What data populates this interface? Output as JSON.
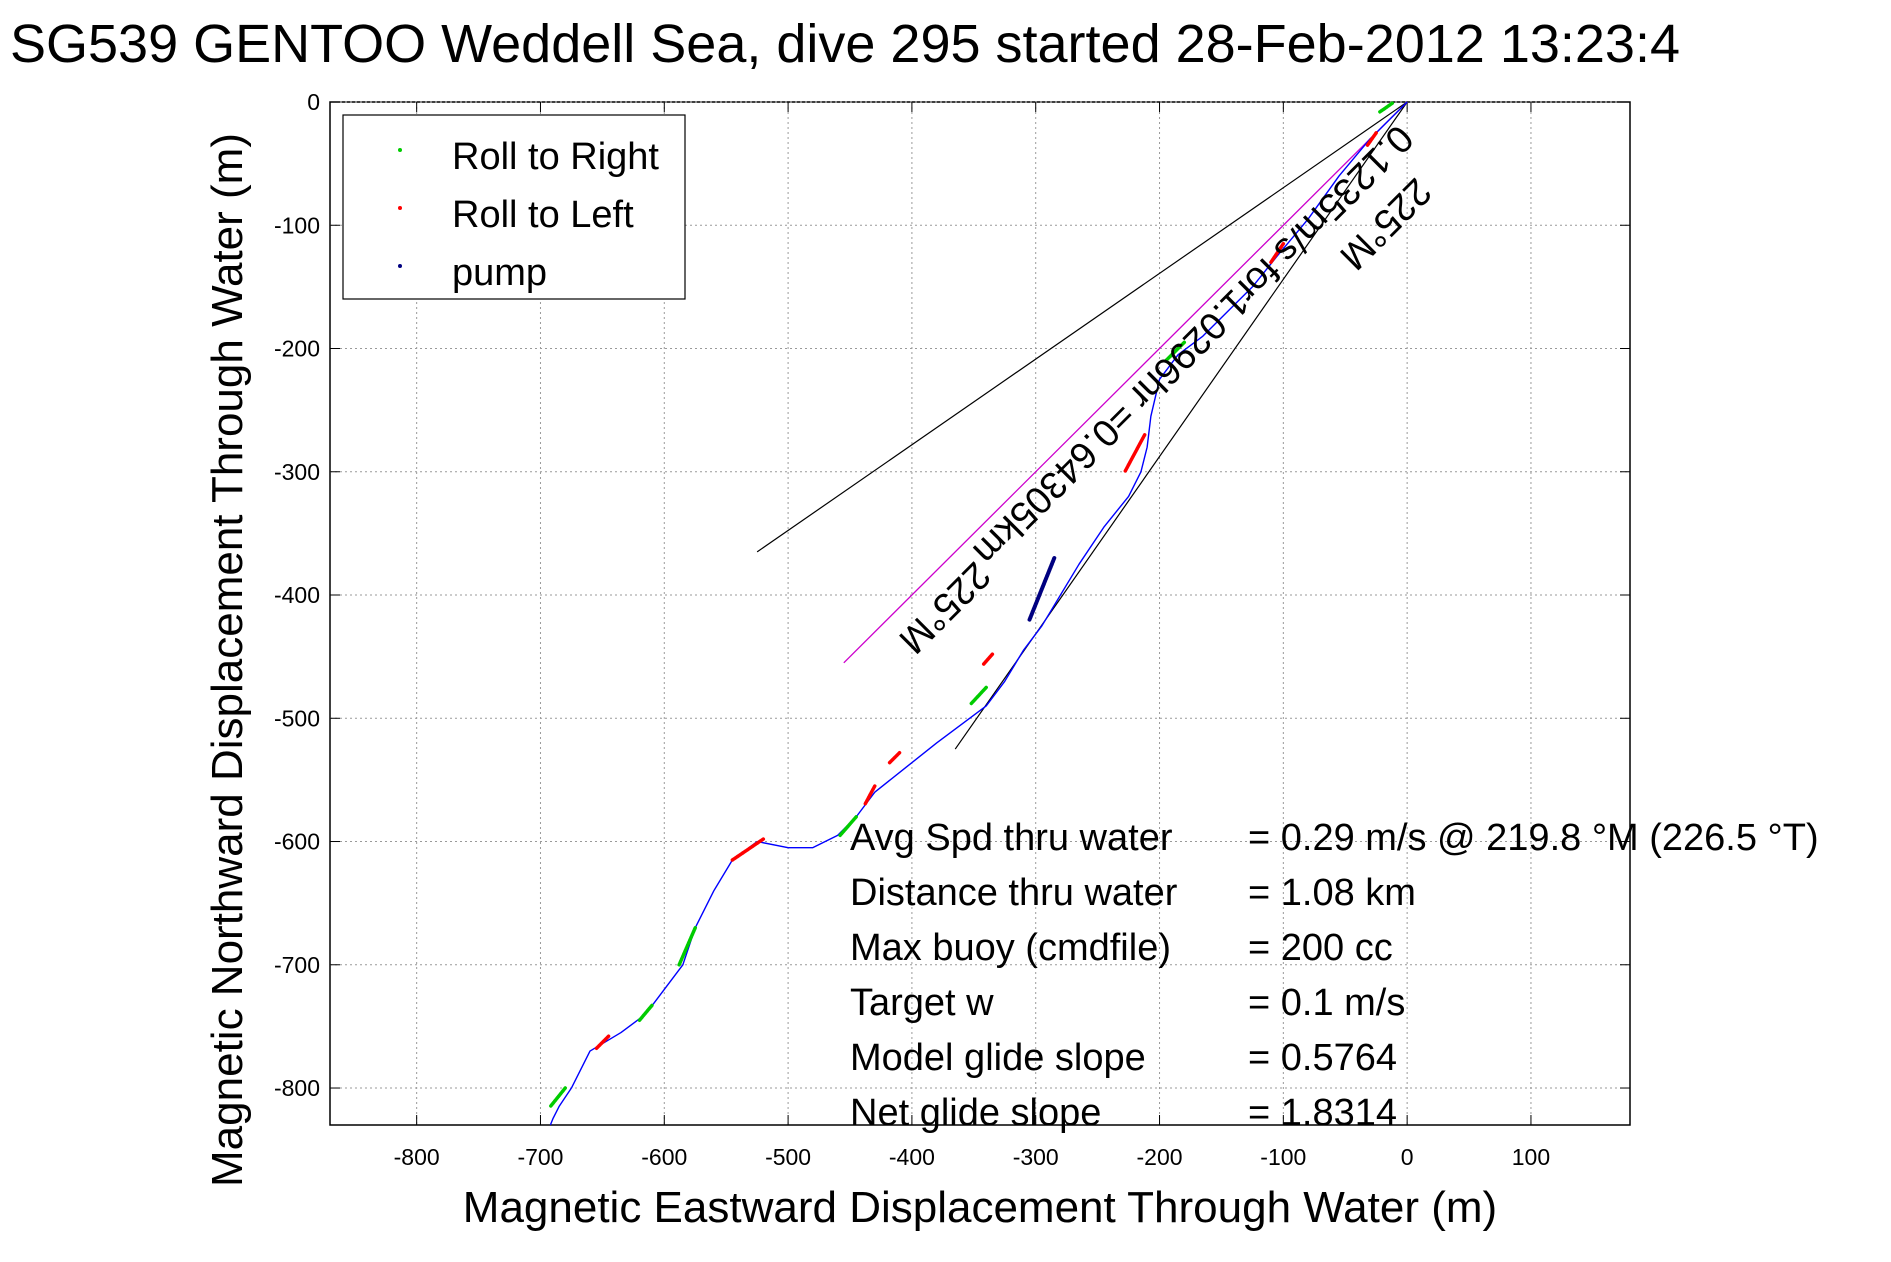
{
  "chart_data": {
    "type": "line",
    "title": "SG539 GENTOO Weddell Sea, dive 295 started 28-Feb-2012 13:23:4",
    "xlabel": "Magnetic Eastward Displacement Through Water (m)",
    "ylabel": "Magnetic Northward Displacement Through Water (m)",
    "xlim": [
      -870,
      180
    ],
    "ylim": [
      -830,
      0
    ],
    "xticks": [
      -800,
      -700,
      -600,
      -500,
      -400,
      -300,
      -200,
      -100,
      0,
      100
    ],
    "yticks": [
      0,
      -100,
      -200,
      -300,
      -400,
      -500,
      -600,
      -700,
      -800
    ],
    "grid": true,
    "legend_position": "top-left",
    "series": [
      {
        "name": "track",
        "color": "#0000ff",
        "x": [
          0,
          -30,
          -55,
          -80,
          -105,
          -125,
          -145,
          -165,
          -185,
          -200,
          -207,
          -210,
          -215,
          -225,
          -245,
          -265,
          -280,
          -295,
          -310,
          -325,
          -340,
          -360,
          -380,
          -405,
          -430,
          -445,
          -460,
          -480,
          -500,
          -525,
          -545,
          -560,
          -575,
          -585,
          -600,
          -615,
          -635,
          -660,
          -675,
          -685,
          -690,
          -692
        ],
        "y": [
          0,
          -30,
          -60,
          -95,
          -125,
          -150,
          -170,
          -190,
          -205,
          -225,
          -255,
          -280,
          -300,
          -320,
          -345,
          -375,
          -400,
          -425,
          -445,
          -470,
          -490,
          -505,
          -520,
          -540,
          -560,
          -580,
          -595,
          -605,
          -605,
          -600,
          -615,
          -640,
          -670,
          -700,
          -720,
          -740,
          -755,
          -770,
          -800,
          -815,
          -825,
          -830
        ]
      },
      {
        "name": "Roll to Right",
        "color": "#00cc00",
        "marker": "dot"
      },
      {
        "name": "Roll to Left",
        "color": "#ff0000",
        "marker": "dot"
      },
      {
        "name": "pump",
        "color": "#000080",
        "marker": "dot"
      }
    ],
    "roll_right_segments": [
      {
        "x": [
          -12,
          -22
        ],
        "y": [
          -1,
          -8
        ]
      },
      {
        "x": [
          -180,
          -195
        ],
        "y": [
          -195,
          -210
        ]
      },
      {
        "x": [
          -340,
          -352
        ],
        "y": [
          -475,
          -488
        ]
      },
      {
        "x": [
          -445,
          -458
        ],
        "y": [
          -580,
          -595
        ]
      },
      {
        "x": [
          -575,
          -588
        ],
        "y": [
          -670,
          -700
        ]
      },
      {
        "x": [
          -610,
          -620
        ],
        "y": [
          -733,
          -745
        ]
      },
      {
        "x": [
          -680,
          -692
        ],
        "y": [
          -800,
          -815
        ]
      }
    ],
    "roll_left_segments": [
      {
        "x": [
          -25,
          -32
        ],
        "y": [
          -25,
          -35
        ]
      },
      {
        "x": [
          -100,
          -110
        ],
        "y": [
          -115,
          -130
        ]
      },
      {
        "x": [
          -212,
          -228
        ],
        "y": [
          -270,
          -300
        ]
      },
      {
        "x": [
          -335,
          -342
        ],
        "y": [
          -448,
          -456
        ]
      },
      {
        "x": [
          -410,
          -418
        ],
        "y": [
          -528,
          -536
        ]
      },
      {
        "x": [
          -430,
          -438
        ],
        "y": [
          -555,
          -570
        ]
      },
      {
        "x": [
          -520,
          -545
        ],
        "y": [
          -598,
          -615
        ]
      },
      {
        "x": [
          -645,
          -655
        ],
        "y": [
          -758,
          -768
        ]
      }
    ],
    "pump_segment": {
      "x": [
        -285,
        -305
      ],
      "y": [
        -370,
        -420
      ]
    },
    "annotations": {
      "current_label": "0.1235m/s for1.0296hr =0.64305km",
      "heading_label_a": "225°M",
      "heading_label_b": "225°M",
      "current_line": {
        "x": [
          0,
          -455
        ],
        "y": [
          0,
          -455
        ]
      },
      "cone_upper": {
        "x": [
          0,
          -525
        ],
        "y": [
          0,
          -365
        ]
      },
      "cone_lower": {
        "x": [
          0,
          -365
        ],
        "y": [
          0,
          -525
        ]
      }
    },
    "stats": [
      {
        "label": "Avg Spd thru water",
        "value": "=  0.29 m/s @ 219.8 °M (226.5 °T)"
      },
      {
        "label": "Distance thru water",
        "value": "=  1.08 km"
      },
      {
        "label": "Max buoy (cmdfile)",
        "value": "= 200 cc"
      },
      {
        "label": "Target w",
        "value": "= 0.1 m/s"
      },
      {
        "label": "Model glide slope",
        "value": "= 0.5764"
      },
      {
        "label": "Net glide slope",
        "value": "= 1.8314"
      }
    ]
  }
}
